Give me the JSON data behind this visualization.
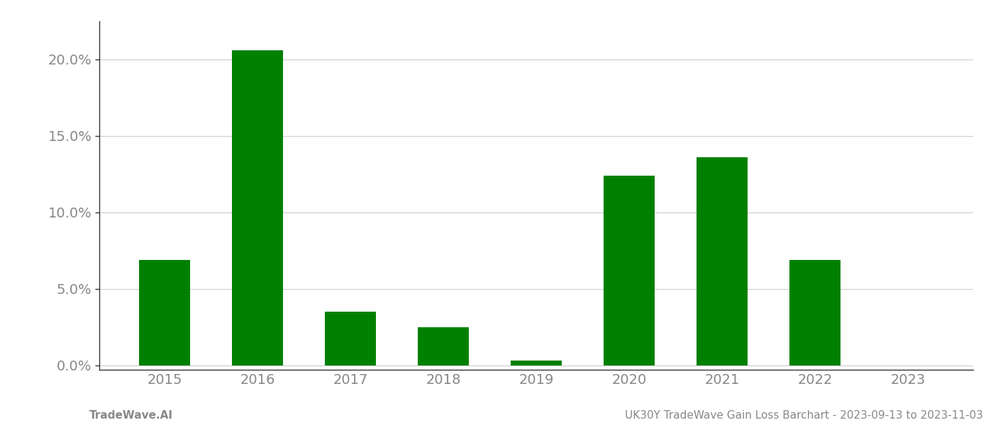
{
  "years": [
    "2015",
    "2016",
    "2017",
    "2018",
    "2019",
    "2020",
    "2021",
    "2022",
    "2023"
  ],
  "values": [
    0.069,
    0.206,
    0.035,
    0.025,
    0.003,
    0.124,
    0.136,
    0.069,
    0.0
  ],
  "bar_color": "#008000",
  "background_color": "#ffffff",
  "ylabel_ticks": [
    0.0,
    0.05,
    0.1,
    0.15,
    0.2
  ],
  "ylim": [
    -0.003,
    0.225
  ],
  "footer_left": "TradeWave.AI",
  "footer_right": "UK30Y TradeWave Gain Loss Barchart - 2023-09-13 to 2023-11-03",
  "grid_color": "#cccccc",
  "tick_label_color": "#888888",
  "footer_color": "#888888",
  "spine_color": "#333333",
  "bar_width": 0.55,
  "tick_label_fontsize": 14,
  "footer_fontsize": 11
}
